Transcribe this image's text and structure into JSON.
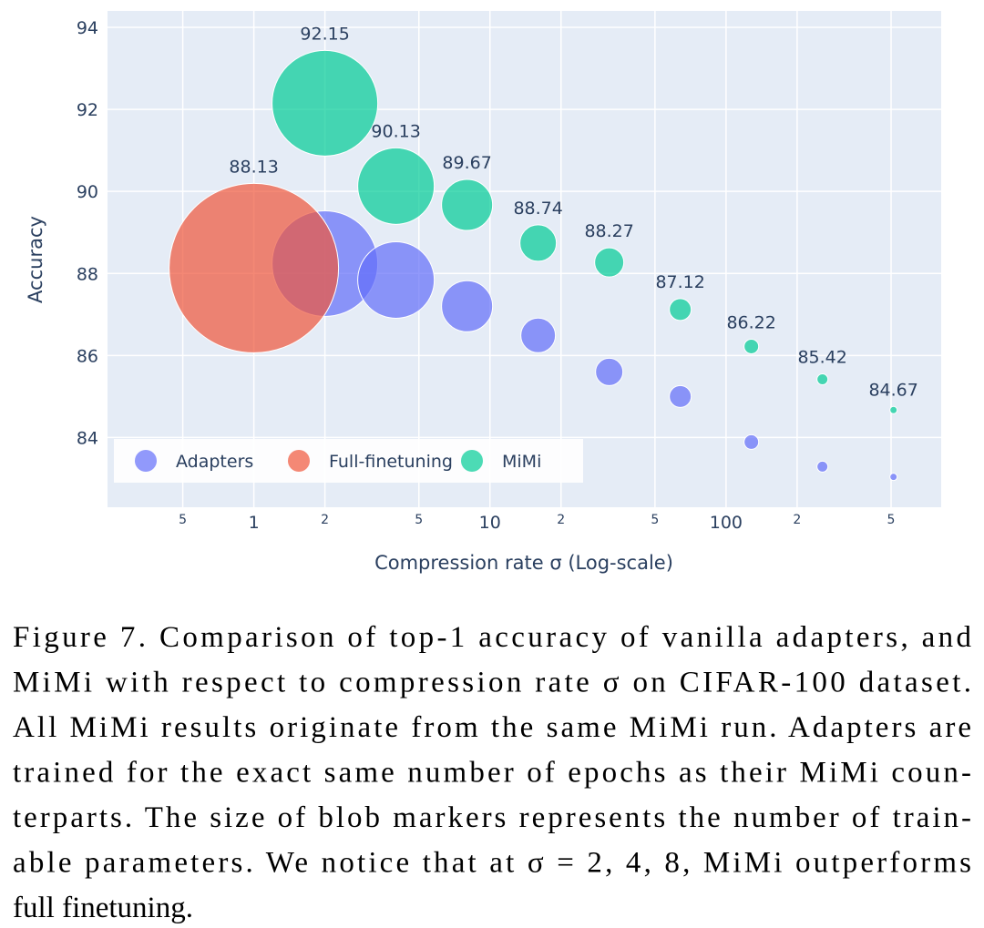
{
  "chart_data": {
    "type": "scatter",
    "x_label": "Compression rate σ (Log-scale)",
    "y_label": "Accuracy",
    "x_log": true,
    "grid": true,
    "legend_position": "bottom left",
    "xlim": [
      0.24,
      815
    ],
    "ylim": [
      82.3,
      94.4
    ],
    "xticks": [
      {
        "value": 0.5,
        "label": "5"
      },
      1,
      2,
      5,
      10,
      {
        "value": 20,
        "label": "2"
      },
      {
        "value": 50,
        "label": "5"
      },
      100,
      {
        "value": 200,
        "label": "2"
      },
      {
        "value": 500,
        "label": "5"
      }
    ],
    "yticks": [
      84,
      86,
      88,
      90,
      92,
      94
    ],
    "series": [
      {
        "name": "Adapters",
        "color": "#636efa",
        "x": [
          2,
          4,
          8,
          16,
          32,
          64,
          128,
          256,
          512
        ],
        "values": [
          88.24,
          87.84,
          87.2,
          86.49,
          85.6,
          85.0,
          83.89,
          83.29,
          83.04
        ],
        "sizes": [
          116,
          84,
          56,
          38,
          30,
          24,
          16,
          12,
          8
        ]
      },
      {
        "name": "Full-finetuning",
        "color": "#ef553b",
        "x": [
          1
        ],
        "values": [
          88.13
        ],
        "sizes": [
          186
        ],
        "show_labels": true
      },
      {
        "name": "MiMi",
        "color": "#00cc96",
        "x": [
          2,
          4,
          8,
          16,
          32,
          64,
          128,
          256,
          512
        ],
        "values": [
          92.15,
          90.13,
          89.67,
          88.74,
          88.27,
          87.12,
          86.22,
          85.42,
          84.67
        ],
        "sizes": [
          116,
          84,
          56,
          40,
          32,
          24,
          16,
          12,
          8
        ],
        "show_labels": true
      }
    ]
  },
  "caption_lines": [
    "Figure 7.  Comparison of top-1 accuracy of vanilla adapters, and",
    "MiMi with respect to compression rate σ on CIFAR-100 dataset.",
    "All MiMi results originate from the same MiMi run. Adapters are",
    "trained for the exact same number of epochs as their MiMi coun-",
    "terparts. The size of blob markers represents the number of train-",
    "able parameters. We notice that at σ = 2, 4, 8, MiMi outperforms",
    "full finetuning."
  ]
}
